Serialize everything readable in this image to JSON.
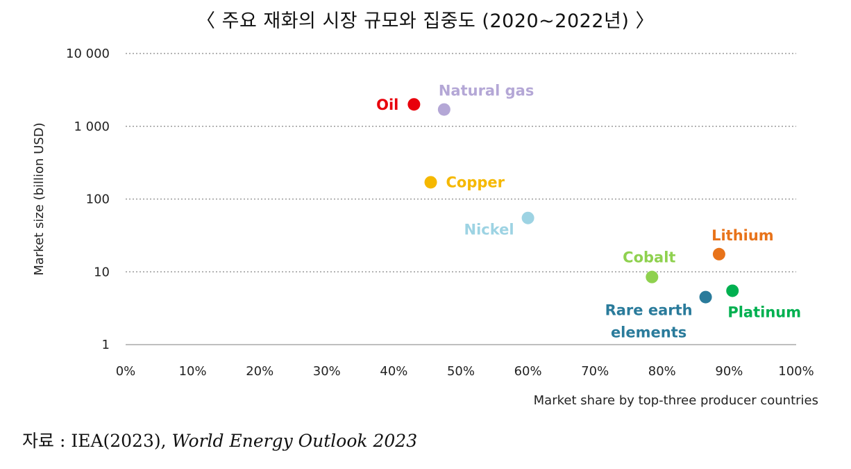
{
  "title": "〈 주요 재화의 시장 규모와 집중도 (2020~2022년) 〉",
  "source": {
    "prefix": "자료 : IEA(2023),",
    "publication": "World Energy Outlook 2023"
  },
  "chart_data": {
    "type": "scatter",
    "title": "〈 주요 재화의 시장 규모와 집중도 (2020~2022년) 〉",
    "xlabel": "Market share by top-three producer countries",
    "ylabel": "Market size (billion USD)",
    "xlim": [
      0,
      100
    ],
    "ylim": [
      1,
      10000
    ],
    "yscale": "log",
    "grid": "horizontal dotted",
    "x_ticks": [
      "0%",
      "10%",
      "20%",
      "30%",
      "40%",
      "50%",
      "60%",
      "70%",
      "80%",
      "90%",
      "100%"
    ],
    "y_ticks": [
      {
        "value": 1,
        "label": "1"
      },
      {
        "value": 10,
        "label": "10"
      },
      {
        "value": 100,
        "label": "100"
      },
      {
        "value": 1000,
        "label": "1 000"
      },
      {
        "value": 10000,
        "label": "10 000"
      }
    ],
    "points": [
      {
        "label": "Oil",
        "x": 43,
        "y": 2000,
        "color": "#e8000b"
      },
      {
        "label": "Natural gas",
        "x": 47.5,
        "y": 1700,
        "color": "#b4a7d6"
      },
      {
        "label": "Copper",
        "x": 45.5,
        "y": 170,
        "color": "#f5b800"
      },
      {
        "label": "Nickel",
        "x": 60,
        "y": 55,
        "color": "#9dd3e3"
      },
      {
        "label": "Lithium",
        "x": 88.5,
        "y": 17.5,
        "color": "#e8731a"
      },
      {
        "label": "Cobalt",
        "x": 78.5,
        "y": 8.5,
        "color": "#8fd14f"
      },
      {
        "label": "Rare earth elements",
        "x": 86.5,
        "y": 4.5,
        "color": "#2a7b9b"
      },
      {
        "label": "Platinum",
        "x": 90.5,
        "y": 5.5,
        "color": "#00b050"
      }
    ]
  }
}
